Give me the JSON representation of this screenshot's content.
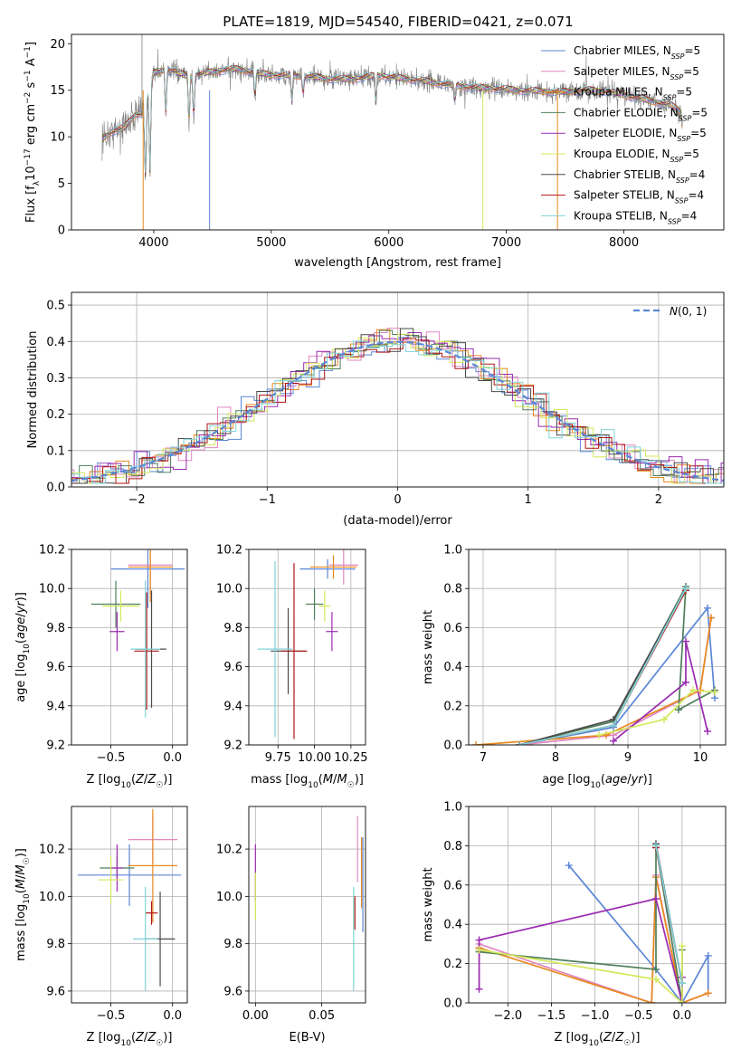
{
  "title": "PLATE=1819, MJD=54540, FIBERID=0421, z=0.071",
  "colors": {
    "chabrier_miles": "#5b86d6",
    "salpeter_miles": "#e087c2",
    "kroupa_miles": "#e8891f",
    "chabrier_elodie": "#4f7f5a",
    "salpeter_elodie": "#9a2bb0",
    "kroupa_elodie": "#d4e85a",
    "chabrier_stelib": "#4a4a4a",
    "salpeter_stelib": "#b01515",
    "kroupa_stelib": "#7fd3d8",
    "data": "#808080",
    "normal": "#5b86d6"
  },
  "chart_data": [
    {
      "id": "spectrum",
      "type": "line",
      "xlabel": "wavelength [Angstrom, rest frame]",
      "ylabel": "Flux [f_λ 10^-17 erg cm^-2 s^-1 A^-1]",
      "xlim": [
        3300,
        8850
      ],
      "ylim": [
        0,
        21
      ],
      "xticks": [
        4000,
        5000,
        6000,
        7000,
        8000
      ],
      "yticks": [
        0,
        5,
        10,
        15,
        20
      ],
      "legend_position": "top-right",
      "series": [
        {
          "name": "Chabrier MILES, N_SSP=5",
          "key": "chabrier_miles"
        },
        {
          "name": "Salpeter MILES, N_SSP=5",
          "key": "salpeter_miles"
        },
        {
          "name": "Kroupa MILES, N_SSP=5",
          "key": "kroupa_miles"
        },
        {
          "name": "Chabrier ELODIE, N_SSP=5",
          "key": "chabrier_elodie"
        },
        {
          "name": "Salpeter ELODIE, N_SSP=5",
          "key": "salpeter_elodie"
        },
        {
          "name": "Kroupa ELODIE, N_SSP=5",
          "key": "kroupa_elodie"
        },
        {
          "name": "Chabrier STELIB, N_SSP=4",
          "key": "chabrier_stelib"
        },
        {
          "name": "Salpeter STELIB, N_SSP=4",
          "key": "salpeter_stelib"
        },
        {
          "name": "Kroupa STELIB, N_SSP=4",
          "key": "kroupa_stelib"
        }
      ],
      "continuum": [
        [
          3560,
          9.8
        ],
        [
          3650,
          10.6
        ],
        [
          3750,
          11.0
        ],
        [
          3850,
          12.5
        ],
        [
          3920,
          12.5
        ],
        [
          4000,
          16.8
        ],
        [
          4100,
          17.3
        ],
        [
          4300,
          16.5
        ],
        [
          4500,
          17.0
        ],
        [
          4700,
          17.3
        ],
        [
          4900,
          16.8
        ],
        [
          5100,
          16.6
        ],
        [
          5300,
          16.5
        ],
        [
          5500,
          16.2
        ],
        [
          5700,
          16.2
        ],
        [
          5900,
          16.6
        ],
        [
          6100,
          16.3
        ],
        [
          6300,
          16.0
        ],
        [
          6500,
          15.6
        ],
        [
          6700,
          15.3
        ],
        [
          6900,
          15.2
        ],
        [
          7100,
          15.0
        ],
        [
          7300,
          14.9
        ],
        [
          7450,
          14.8
        ],
        [
          7700,
          15.0
        ],
        [
          7900,
          14.8
        ],
        [
          8100,
          14.2
        ],
        [
          8250,
          13.8
        ],
        [
          8400,
          13.4
        ],
        [
          8500,
          12.6
        ]
      ],
      "dips": [
        [
          3930,
          4.5
        ],
        [
          3968,
          6.0
        ],
        [
          4102,
          12.0
        ],
        [
          4300,
          10.8
        ],
        [
          4340,
          11.5
        ],
        [
          4861,
          13.8
        ],
        [
          5175,
          13.5
        ],
        [
          5270,
          14.6
        ],
        [
          5890,
          13.2
        ],
        [
          6563,
          13.8
        ],
        [
          8498,
          11.0
        ],
        [
          8542,
          10.0
        ],
        [
          8662,
          10.5
        ]
      ],
      "spikes": [
        [
          3910,
          0,
          "#e8891f"
        ],
        [
          4475,
          0,
          "#5b86d6"
        ],
        [
          6800,
          0,
          "#d4e85a"
        ],
        [
          7435,
          0,
          "#e8891f"
        ]
      ]
    },
    {
      "id": "residuals",
      "type": "histogram",
      "xlabel": "(data-model)/error",
      "ylabel": "Normed distribution",
      "xlim": [
        -2.5,
        2.5
      ],
      "ylim": [
        0,
        0.535
      ],
      "xticks": [
        -2,
        -1,
        0,
        1,
        2
      ],
      "yticks": [
        0.0,
        0.1,
        0.2,
        0.3,
        0.4,
        0.5
      ],
      "legend_position": "top-right",
      "legend": "N(0,1)"
    },
    {
      "id": "age_vs_Z",
      "type": "scatter",
      "xlabel": "Z [log10(Z/Z_sun)]",
      "ylabel": "age [log10(age/yr)]",
      "xlim": [
        -0.82,
        0.12
      ],
      "ylim": [
        9.2,
        10.2
      ],
      "xticks": [
        -0.5,
        0.0
      ],
      "yticks": [
        9.2,
        9.4,
        9.6,
        9.8,
        10.0,
        10.2
      ],
      "points": [
        {
          "key": "chabrier_miles",
          "x": -0.2,
          "y": 10.1,
          "xerr": 0.3,
          "yerr": 0.2
        },
        {
          "key": "salpeter_miles",
          "x": -0.18,
          "y": 10.12,
          "xerr": 0.18,
          "yerr": 0.15
        },
        {
          "key": "kroupa_miles",
          "x": -0.18,
          "y": 10.11,
          "xerr": 0.18,
          "yerr": 0.18
        },
        {
          "key": "chabrier_elodie",
          "x": -0.46,
          "y": 9.92,
          "xerr": 0.2,
          "yerr": 0.12
        },
        {
          "key": "salpeter_elodie",
          "x": -0.45,
          "y": 9.78,
          "xerr": 0.06,
          "yerr": 0.1
        },
        {
          "key": "kroupa_elodie",
          "x": -0.42,
          "y": 9.91,
          "xerr": 0.15,
          "yerr": 0.08
        },
        {
          "key": "chabrier_stelib",
          "x": -0.17,
          "y": 9.69,
          "xerr": 0.12,
          "yerr": 0.3
        },
        {
          "key": "salpeter_stelib",
          "x": -0.21,
          "y": 9.68,
          "xerr": 0.1,
          "yerr": 0.3
        },
        {
          "key": "kroupa_stelib",
          "x": -0.22,
          "y": 9.69,
          "xerr": 0.12,
          "yerr": 0.35
        }
      ]
    },
    {
      "id": "age_vs_mass",
      "type": "scatter",
      "xlabel": "mass [log10(M/M_sun)]",
      "ylabel": "",
      "xlim": [
        9.55,
        10.35
      ],
      "ylim": [
        9.2,
        10.2
      ],
      "xticks": [
        9.75,
        10.0,
        10.25
      ],
      "yticks": [
        9.2,
        9.4,
        9.6,
        9.8,
        10.0,
        10.2
      ],
      "points": [
        {
          "key": "chabrier_miles",
          "x": 10.09,
          "y": 10.1,
          "xerr": 0.19,
          "yerr": 0.05
        },
        {
          "key": "salpeter_miles",
          "x": 10.2,
          "y": 10.12,
          "xerr": 0.1,
          "yerr": 0.1
        },
        {
          "key": "kroupa_miles",
          "x": 10.13,
          "y": 10.11,
          "xerr": 0.16,
          "yerr": 0.06
        },
        {
          "key": "chabrier_elodie",
          "x": 10.0,
          "y": 9.92,
          "xerr": 0.06,
          "yerr": 0.08
        },
        {
          "key": "salpeter_elodie",
          "x": 10.12,
          "y": 9.78,
          "xerr": 0.04,
          "yerr": 0.1
        },
        {
          "key": "kroupa_elodie",
          "x": 10.07,
          "y": 9.91,
          "xerr": 0.04,
          "yerr": 0.08
        },
        {
          "key": "chabrier_stelib",
          "x": 9.82,
          "y": 9.68,
          "xerr": 0.12,
          "yerr": 0.22
        },
        {
          "key": "salpeter_stelib",
          "x": 9.86,
          "y": 9.68,
          "xerr": 0.09,
          "yerr": 0.45
        },
        {
          "key": "kroupa_stelib",
          "x": 9.73,
          "y": 9.69,
          "xerr": 0.12,
          "yerr": 0.45
        }
      ]
    },
    {
      "id": "weight_vs_age",
      "type": "line",
      "xlabel": "age [log10(age/yr)]",
      "ylabel": "mass weight",
      "xlim": [
        6.8,
        10.35
      ],
      "ylim": [
        0,
        1
      ],
      "xticks": [
        7,
        8,
        9,
        10
      ],
      "yticks": [
        0.0,
        0.2,
        0.4,
        0.6,
        0.8,
        1.0
      ],
      "series": [
        {
          "key": "chabrier_miles",
          "x": [
            7.5,
            8.8,
            10.1,
            10.2
          ],
          "y": [
            0.0,
            0.09,
            0.7,
            0.24
          ]
        },
        {
          "key": "salpeter_miles",
          "x": [
            7.5,
            8.8,
            10.0,
            10.15
          ],
          "y": [
            0.0,
            0.05,
            0.28,
            0.65
          ]
        },
        {
          "key": "kroupa_miles",
          "x": [
            6.9,
            8.7,
            10.0,
            10.15
          ],
          "y": [
            0.0,
            0.05,
            0.28,
            0.65
          ]
        },
        {
          "key": "chabrier_elodie",
          "x": [
            7.5,
            8.8,
            9.8,
            9.7,
            10.2
          ],
          "y": [
            0.0,
            0.12,
            0.81,
            0.18,
            0.28
          ]
        },
        {
          "key": "salpeter_elodie",
          "x": [
            8.8,
            9.8,
            9.8,
            10.1
          ],
          "y": [
            0.02,
            0.32,
            0.53,
            0.07
          ]
        },
        {
          "key": "kroupa_elodie",
          "x": [
            8.6,
            9.5,
            9.9,
            10.2
          ],
          "y": [
            0.05,
            0.13,
            0.28,
            0.27
          ]
        },
        {
          "key": "chabrier_stelib",
          "x": [
            7.5,
            8.8,
            9.8
          ],
          "y": [
            0.0,
            0.13,
            0.8
          ]
        },
        {
          "key": "salpeter_stelib",
          "x": [
            7.5,
            8.8,
            9.8
          ],
          "y": [
            0.0,
            0.1,
            0.79
          ]
        },
        {
          "key": "kroupa_stelib",
          "x": [
            7.5,
            8.8,
            9.8
          ],
          "y": [
            0.0,
            0.1,
            0.8
          ]
        }
      ]
    },
    {
      "id": "mass_vs_Z",
      "type": "scatter",
      "xlabel": "Z [log10(Z/Z_sun)]",
      "ylabel": "mass [log10(M/M_sun)]",
      "xlim": [
        -0.82,
        0.12
      ],
      "ylim": [
        9.55,
        10.38
      ],
      "xticks": [
        -0.5,
        0.0
      ],
      "yticks": [
        9.6,
        9.8,
        10.0,
        10.2
      ],
      "points": [
        {
          "key": "chabrier_miles",
          "x": -0.35,
          "y": 10.09,
          "xerr": 0.42,
          "yerr": 0.13
        },
        {
          "key": "salpeter_miles",
          "x": -0.16,
          "y": 10.24,
          "xerr": 0.2,
          "yerr": 0.1
        },
        {
          "key": "kroupa_miles",
          "x": -0.16,
          "y": 10.13,
          "xerr": 0.2,
          "yerr": 0.24
        },
        {
          "key": "chabrier_elodie",
          "x": -0.45,
          "y": 10.12,
          "xerr": 0.14,
          "yerr": 0.05
        },
        {
          "key": "salpeter_elodie",
          "x": -0.45,
          "y": 10.12,
          "xerr": 0.05,
          "yerr": 0.1
        },
        {
          "key": "kroupa_elodie",
          "x": -0.5,
          "y": 10.07,
          "xerr": 0.1,
          "yerr": 0.1
        },
        {
          "key": "chabrier_stelib",
          "x": -0.1,
          "y": 9.82,
          "xerr": 0.12,
          "yerr": 0.2
        },
        {
          "key": "salpeter_stelib",
          "x": -0.17,
          "y": 9.93,
          "xerr": 0.05,
          "yerr": 0.05
        },
        {
          "key": "kroupa_stelib",
          "x": -0.22,
          "y": 9.82,
          "xerr": 0.1,
          "yerr": 0.22
        }
      ]
    },
    {
      "id": "mass_vs_EBV",
      "type": "scatter",
      "xlabel": "E(B-V)",
      "ylabel": "",
      "xlim": [
        -0.005,
        0.083
      ],
      "ylim": [
        9.55,
        10.38
      ],
      "xticks": [
        0.0,
        0.05
      ],
      "yticks": [
        9.6,
        9.8,
        10.0,
        10.2
      ],
      "points": [
        {
          "key": "salpeter_elodie",
          "x": 0.0,
          "y": 10.1,
          "xerr": 0,
          "yerr": 0.12
        },
        {
          "key": "kroupa_elodie",
          "x": 0.0,
          "y": 10.0,
          "xerr": 0,
          "yerr": 0.1
        },
        {
          "key": "salpeter_miles",
          "x": 0.077,
          "y": 10.2,
          "xerr": 0,
          "yerr": 0.14
        },
        {
          "key": "kroupa_miles",
          "x": 0.08,
          "y": 10.1,
          "xerr": 0,
          "yerr": 0.15
        },
        {
          "key": "chabrier_miles",
          "x": 0.081,
          "y": 10.05,
          "xerr": 0,
          "yerr": 0.2
        },
        {
          "key": "salpeter_stelib",
          "x": 0.075,
          "y": 9.93,
          "xerr": 0,
          "yerr": 0.07
        },
        {
          "key": "kroupa_stelib",
          "x": 0.074,
          "y": 9.82,
          "xerr": 0,
          "yerr": 0.22
        }
      ]
    },
    {
      "id": "weight_vs_Z",
      "type": "line",
      "xlabel": "Z [log10(Z/Z_sun)]",
      "ylabel": "mass weight",
      "xlim": [
        -2.45,
        0.5
      ],
      "ylim": [
        0,
        1
      ],
      "xticks": [
        -2.0,
        -1.5,
        -1.0,
        -0.5,
        0.0
      ],
      "yticks": [
        0.0,
        0.2,
        0.4,
        0.6,
        0.8,
        1.0
      ],
      "series": [
        {
          "key": "chabrier_miles",
          "x": [
            -1.3,
            -0.3,
            0.0,
            0.3,
            0.3
          ],
          "y": [
            0.7,
            0.17,
            0.0,
            0.24,
            0.05
          ]
        },
        {
          "key": "salpeter_miles",
          "x": [
            -2.33,
            -0.35,
            -0.3,
            0.0,
            0.3
          ],
          "y": [
            0.3,
            0.0,
            0.65,
            0.0,
            0.05
          ]
        },
        {
          "key": "kroupa_miles",
          "x": [
            -2.33,
            -0.35,
            -0.3,
            0.0,
            0.3
          ],
          "y": [
            0.28,
            0.0,
            0.64,
            0.0,
            0.05
          ]
        },
        {
          "key": "chabrier_elodie",
          "x": [
            -2.33,
            -0.3,
            -0.3,
            0.0,
            0.0
          ],
          "y": [
            0.26,
            0.17,
            0.8,
            0.0,
            0.27
          ]
        },
        {
          "key": "salpeter_elodie",
          "x": [
            -2.33,
            -2.33,
            -0.3,
            0.0,
            0.0
          ],
          "y": [
            0.07,
            0.32,
            0.53,
            0.0,
            0.13
          ]
        },
        {
          "key": "kroupa_elodie",
          "x": [
            -2.33,
            -0.3,
            0.0,
            0.0
          ],
          "y": [
            0.27,
            0.12,
            0.0,
            0.29
          ]
        },
        {
          "key": "chabrier_stelib",
          "x": [
            -0.3,
            0.0
          ],
          "y": [
            0.81,
            0.1
          ]
        },
        {
          "key": "salpeter_stelib",
          "x": [
            -0.3,
            0.0
          ],
          "y": [
            0.79,
            0.1
          ]
        },
        {
          "key": "kroupa_stelib",
          "x": [
            -0.3,
            0.0
          ],
          "y": [
            0.8,
            0.1
          ]
        }
      ]
    }
  ]
}
